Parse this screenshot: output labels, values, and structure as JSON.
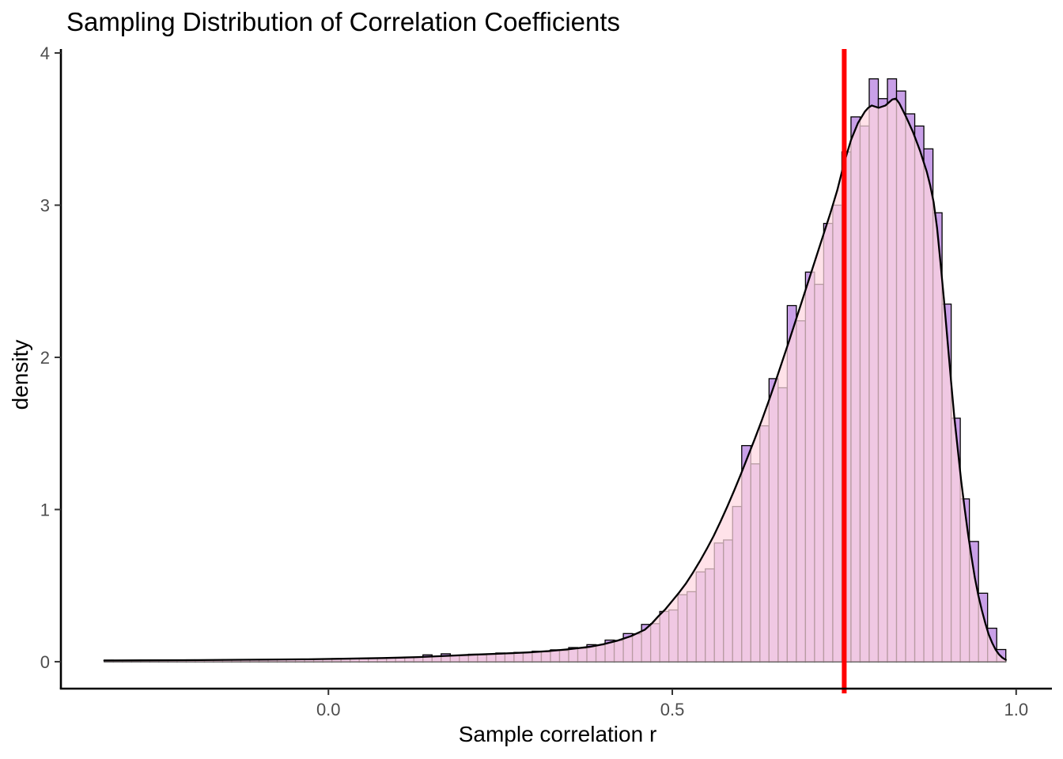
{
  "chart_data": {
    "type": "histogram+density",
    "title": "Sampling Distribution of Correlation Coefficients",
    "xlabel": "Sample correlation r",
    "ylabel": "density",
    "x_ticks": [
      0.0,
      0.5,
      1.0
    ],
    "x_tick_labels": [
      "0.0",
      "0.5",
      "1.0"
    ],
    "y_ticks": [
      0,
      1,
      2,
      3,
      4
    ],
    "y_tick_labels": [
      "0",
      "1",
      "2",
      "3",
      "4"
    ],
    "xlim": [
      -0.389,
      1.052
    ],
    "ylim": [
      -0.177,
      4.026
    ],
    "grid": false,
    "legend": "none",
    "vline": {
      "x": 0.75,
      "color": "#FF0000",
      "stroke_width": 6
    },
    "histogram": {
      "bin_start": -0.326,
      "bin_width": 0.013242,
      "fill": "#C9A0E8",
      "stroke": "#000000",
      "stroke_width": 1.3,
      "heights": [
        0.01,
        0.007,
        0.009,
        0.008,
        0.01,
        0.009,
        0.011,
        0.009,
        0.01,
        0.012,
        0.01,
        0.011,
        0.01,
        0.013,
        0.011,
        0.012,
        0.014,
        0.012,
        0.013,
        0.015,
        0.014,
        0.016,
        0.015,
        0.017,
        0.016,
        0.02,
        0.018,
        0.022,
        0.02,
        0.024,
        0.023,
        0.027,
        0.026,
        0.03,
        0.029,
        0.045,
        0.034,
        0.052,
        0.041,
        0.043,
        0.049,
        0.045,
        0.051,
        0.057,
        0.052,
        0.061,
        0.059,
        0.069,
        0.065,
        0.078,
        0.074,
        0.093,
        0.088,
        0.112,
        0.11,
        0.142,
        0.14,
        0.185,
        0.183,
        0.245,
        0.25,
        0.33,
        0.34,
        0.44,
        0.46,
        0.59,
        0.61,
        0.78,
        0.8,
        1.02,
        1.42,
        1.3,
        1.55,
        1.86,
        1.8,
        2.34,
        2.24,
        2.56,
        2.48,
        2.88,
        3.0,
        3.35,
        3.58,
        3.52,
        3.83,
        3.7,
        3.83,
        3.75,
        3.6,
        3.52,
        3.37,
        2.95,
        2.35,
        1.6,
        1.07,
        0.79,
        0.45,
        0.22,
        0.08
      ]
    },
    "density_curve": {
      "stroke": "#000000",
      "stroke_width": 2.3,
      "area_fill": "rgba(255,215,225,0.72)",
      "points": [
        [
          -0.326,
          0.008
        ],
        [
          -0.27,
          0.009
        ],
        [
          -0.21,
          0.01
        ],
        [
          -0.15,
          0.012
        ],
        [
          -0.09,
          0.014
        ],
        [
          -0.03,
          0.016
        ],
        [
          0.03,
          0.02
        ],
        [
          0.08,
          0.024
        ],
        [
          0.13,
          0.03
        ],
        [
          0.17,
          0.038
        ],
        [
          0.21,
          0.046
        ],
        [
          0.25,
          0.053
        ],
        [
          0.29,
          0.061
        ],
        [
          0.32,
          0.07
        ],
        [
          0.35,
          0.082
        ],
        [
          0.38,
          0.098
        ],
        [
          0.4,
          0.115
        ],
        [
          0.42,
          0.138
        ],
        [
          0.44,
          0.168
        ],
        [
          0.46,
          0.21
        ],
        [
          0.47,
          0.25
        ],
        [
          0.48,
          0.3
        ],
        [
          0.49,
          0.345
        ],
        [
          0.5,
          0.4
        ],
        [
          0.51,
          0.455
        ],
        [
          0.52,
          0.515
        ],
        [
          0.53,
          0.585
        ],
        [
          0.54,
          0.66
        ],
        [
          0.55,
          0.74
        ],
        [
          0.56,
          0.825
        ],
        [
          0.57,
          0.92
        ],
        [
          0.58,
          1.02
        ],
        [
          0.59,
          1.125
        ],
        [
          0.6,
          1.235
        ],
        [
          0.61,
          1.35
        ],
        [
          0.62,
          1.465
        ],
        [
          0.63,
          1.585
        ],
        [
          0.64,
          1.71
        ],
        [
          0.65,
          1.84
        ],
        [
          0.66,
          1.975
        ],
        [
          0.67,
          2.11
        ],
        [
          0.68,
          2.25
        ],
        [
          0.69,
          2.39
        ],
        [
          0.7,
          2.53
        ],
        [
          0.71,
          2.67
        ],
        [
          0.72,
          2.81
        ],
        [
          0.73,
          2.95
        ],
        [
          0.74,
          3.1
        ],
        [
          0.75,
          3.28
        ],
        [
          0.76,
          3.43
        ],
        [
          0.77,
          3.54
        ],
        [
          0.78,
          3.615
        ],
        [
          0.785,
          3.64
        ],
        [
          0.79,
          3.655
        ],
        [
          0.8,
          3.64
        ],
        [
          0.81,
          3.655
        ],
        [
          0.82,
          3.695
        ],
        [
          0.825,
          3.7
        ],
        [
          0.83,
          3.67
        ],
        [
          0.84,
          3.58
        ],
        [
          0.85,
          3.48
        ],
        [
          0.86,
          3.36
        ],
        [
          0.87,
          3.22
        ],
        [
          0.875,
          3.13
        ],
        [
          0.88,
          3.02
        ],
        [
          0.885,
          2.85
        ],
        [
          0.89,
          2.62
        ],
        [
          0.895,
          2.38
        ],
        [
          0.9,
          2.12
        ],
        [
          0.905,
          1.86
        ],
        [
          0.91,
          1.61
        ],
        [
          0.915,
          1.4
        ],
        [
          0.92,
          1.19
        ],
        [
          0.925,
          1.01
        ],
        [
          0.93,
          0.84
        ],
        [
          0.935,
          0.69
        ],
        [
          0.94,
          0.55
        ],
        [
          0.945,
          0.435
        ],
        [
          0.95,
          0.34
        ],
        [
          0.955,
          0.255
        ],
        [
          0.96,
          0.18
        ],
        [
          0.965,
          0.125
        ],
        [
          0.97,
          0.08
        ],
        [
          0.975,
          0.048
        ],
        [
          0.98,
          0.026
        ],
        [
          0.985,
          0.012
        ]
      ]
    },
    "colors": {
      "axis_line": "#000000",
      "tick_mark": "#333333",
      "tick_text": "#4D4D4D",
      "title_text": "#000000",
      "background": "#FFFFFF"
    }
  }
}
